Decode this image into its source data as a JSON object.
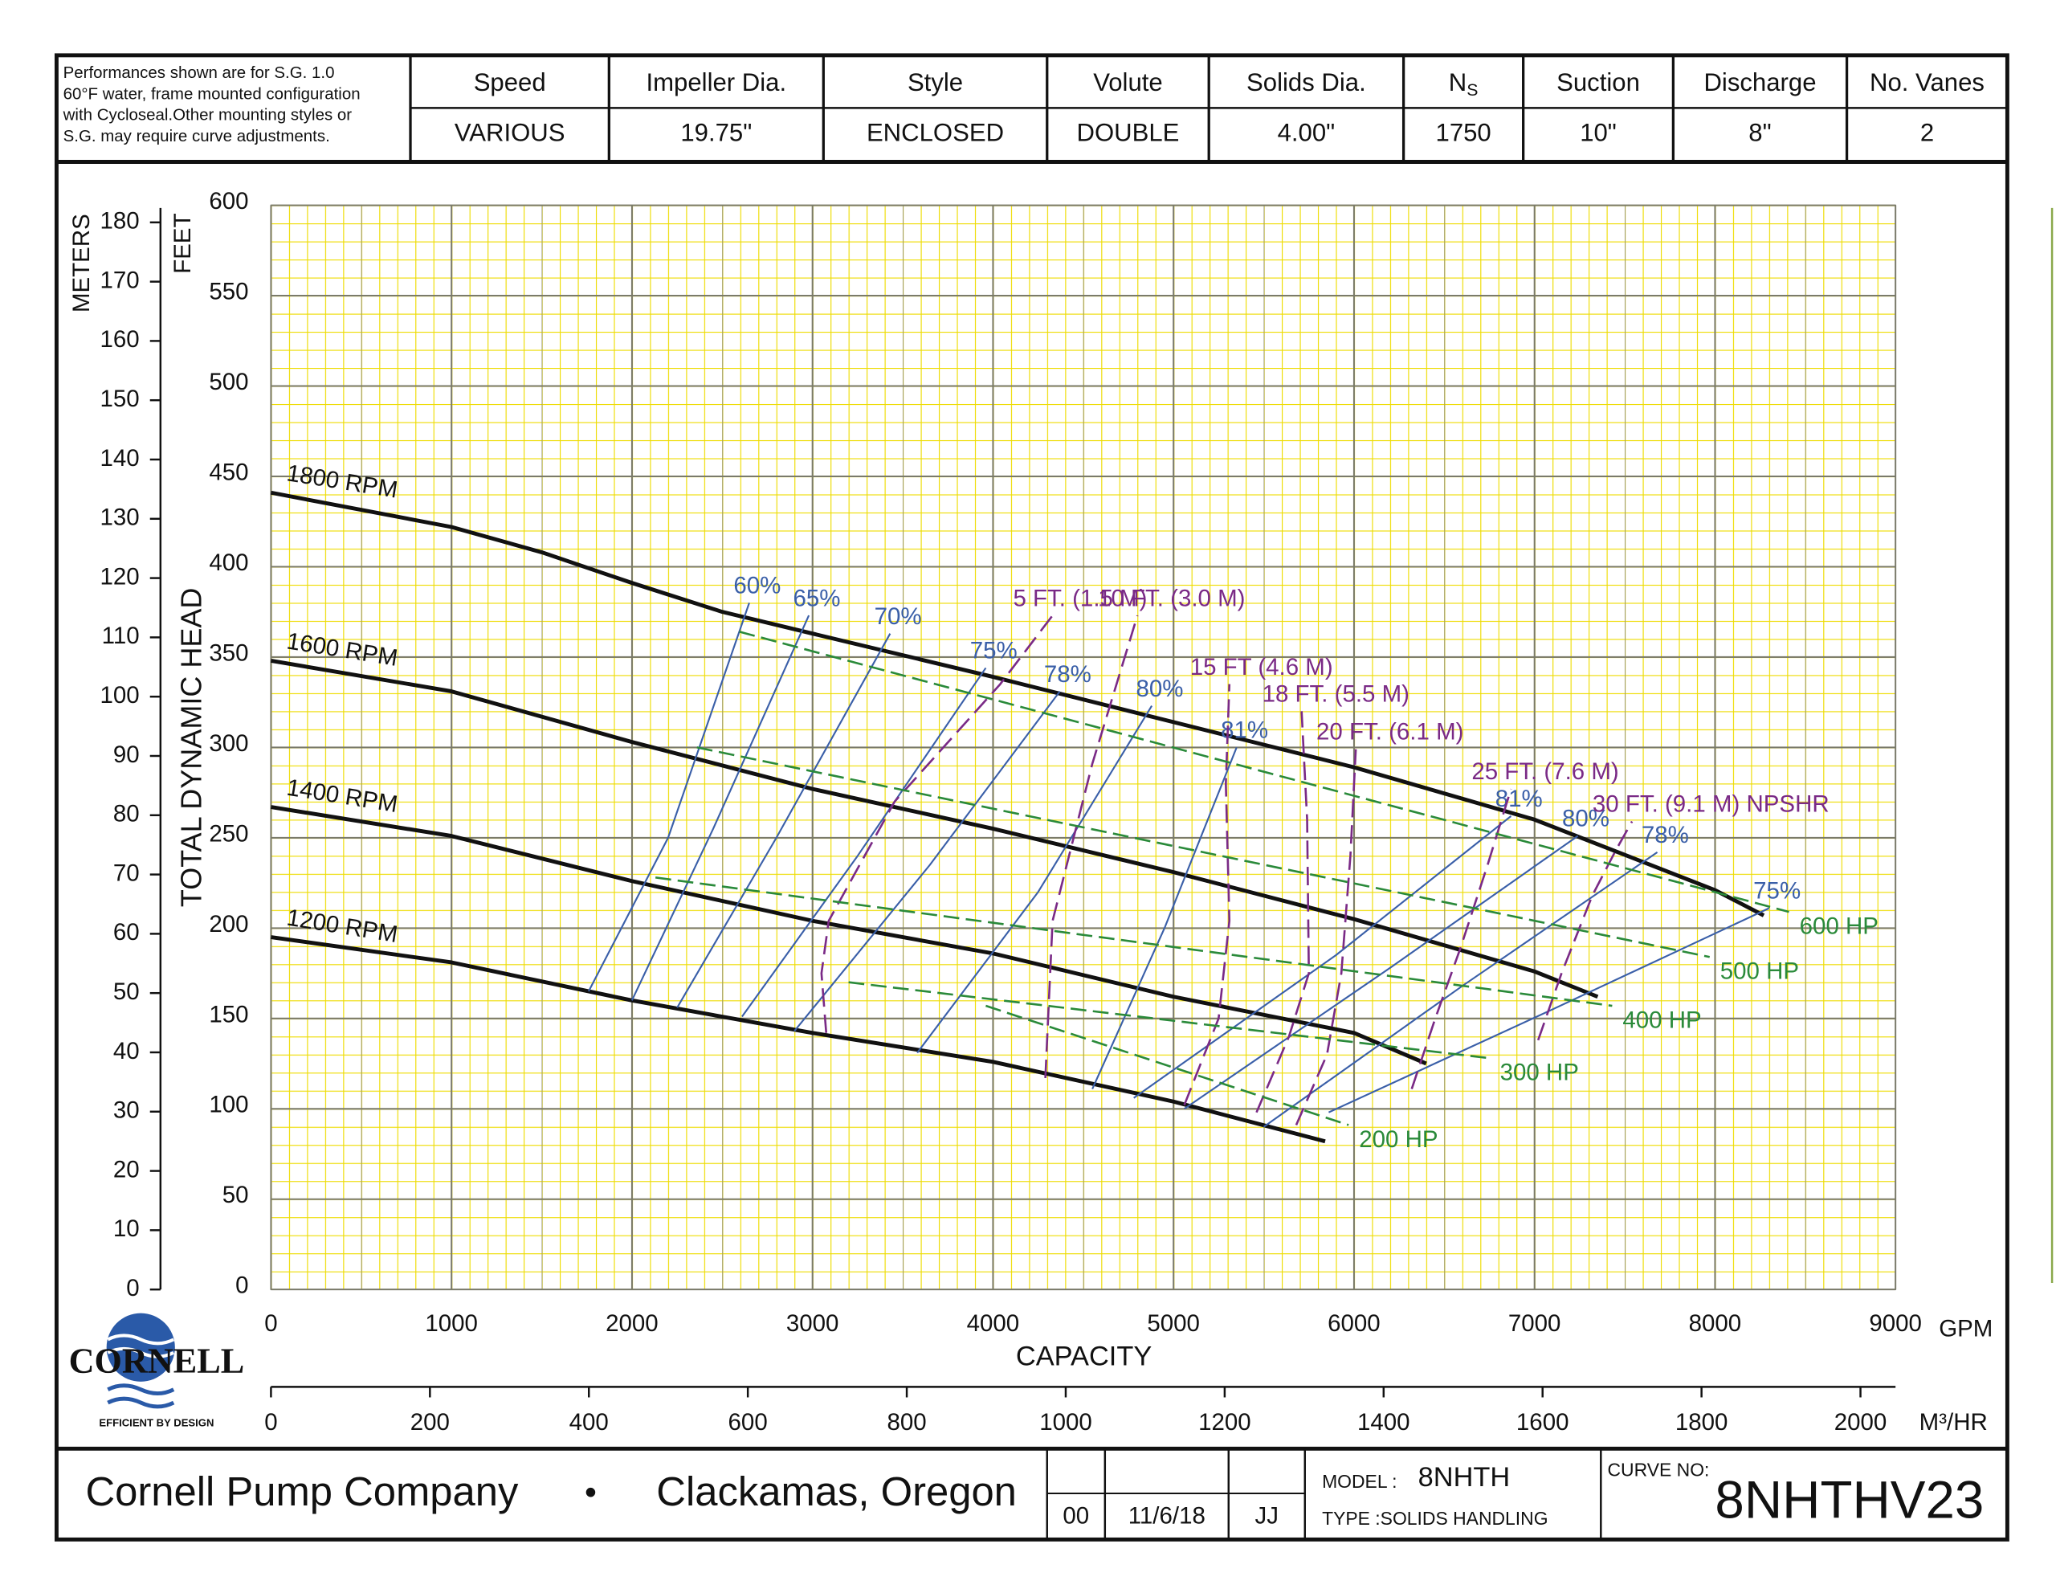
{
  "header": {
    "note": [
      "Performances shown are for S.G. 1.0",
      "60°F water, frame mounted configuration",
      "with Cycloseal.Other mounting styles or",
      "S.G. may require curve adjustments."
    ],
    "columns": [
      {
        "label": "Speed",
        "value": "VARIOUS"
      },
      {
        "label": "Impeller Dia.",
        "value": "19.75\""
      },
      {
        "label": "Style",
        "value": "ENCLOSED"
      },
      {
        "label": "Volute",
        "value": "DOUBLE"
      },
      {
        "label": "Solids Dia.",
        "value": "4.00\""
      },
      {
        "label": "N",
        "subscript": "S",
        "value": "1750"
      },
      {
        "label": "Suction",
        "value": "10\""
      },
      {
        "label": "Discharge",
        "value": "8\""
      },
      {
        "label": "No. Vanes",
        "value": "2"
      }
    ]
  },
  "chart_data": {
    "type": "line",
    "x_label": "CAPACITY",
    "x_unit": "GPM",
    "x2_unit": "M³/HR",
    "y_label": "TOTAL DYNAMIC HEAD",
    "y_unit": "FEET",
    "y2_unit": "METERS",
    "xlim": [
      0,
      9000
    ],
    "xticks": [
      0,
      1000,
      2000,
      3000,
      4000,
      5000,
      6000,
      7000,
      8000,
      9000
    ],
    "x2lim": [
      0,
      2044.1
    ],
    "x2ticks": [
      0,
      200,
      400,
      600,
      800,
      1000,
      1200,
      1400,
      1600,
      1800,
      2000
    ],
    "ylim": [
      0,
      600
    ],
    "yticks": [
      0,
      50,
      100,
      150,
      200,
      250,
      300,
      350,
      400,
      450,
      500,
      550,
      600
    ],
    "y2lim": [
      0,
      182.88
    ],
    "y2ticks": [
      0,
      10,
      20,
      30,
      40,
      50,
      60,
      70,
      80,
      90,
      100,
      110,
      120,
      130,
      140,
      150,
      160,
      170,
      180
    ],
    "grid": true,
    "series": [
      {
        "name": "1800 RPM",
        "color": "#111111",
        "dash": false,
        "x": [
          0,
          1000,
          1500,
          2000,
          2500,
          3000,
          4000,
          5000,
          6000,
          7000,
          8000,
          8270
        ],
        "values": [
          441,
          422,
          408,
          391,
          375,
          363,
          339,
          314,
          289,
          260,
          221,
          207
        ]
      },
      {
        "name": "1600 RPM",
        "color": "#111111",
        "dash": false,
        "x": [
          0,
          1000,
          2000,
          3000,
          4000,
          5000,
          6000,
          7000,
          7350
        ],
        "values": [
          348,
          331,
          303,
          277,
          255,
          231,
          205,
          176,
          162
        ]
      },
      {
        "name": "1400 RPM",
        "color": "#111111",
        "dash": false,
        "x": [
          0,
          1000,
          2000,
          3000,
          4000,
          5000,
          6000,
          6400
        ],
        "values": [
          267,
          251,
          226,
          204,
          186,
          162,
          142,
          125
        ]
      },
      {
        "name": "1200 RPM",
        "color": "#111111",
        "dash": false,
        "x": [
          0,
          1000,
          2000,
          3000,
          4000,
          5000,
          5840
        ],
        "values": [
          195,
          181,
          160,
          142,
          126,
          104,
          82
        ]
      },
      {
        "name": "60%",
        "color": "#3a5fa8",
        "dash": false,
        "x": [
          1760,
          2200,
          2650
        ],
        "values": [
          165,
          250,
          380
        ]
      },
      {
        "name": "65%",
        "color": "#3a5fa8",
        "dash": false,
        "x": [
          2000,
          2450,
          2980
        ],
        "values": [
          160,
          255,
          373
        ]
      },
      {
        "name": "70%",
        "color": "#3a5fa8",
        "dash": false,
        "x": [
          2250,
          2800,
          3430
        ],
        "values": [
          156,
          250,
          363
        ]
      },
      {
        "name": "75%",
        "color": "#3a5fa8",
        "dash": false,
        "x": [
          2610,
          3250,
          3960
        ],
        "values": [
          151,
          240,
          344
        ]
      },
      {
        "name": "78%",
        "color": "#3a5fa8",
        "dash": false,
        "x": [
          2900,
          3650,
          4370
        ],
        "values": [
          143,
          235,
          331
        ]
      },
      {
        "name": "80%",
        "color": "#3a5fa8",
        "dash": false,
        "x": [
          3580,
          4250,
          4880
        ],
        "values": [
          131,
          220,
          323
        ]
      },
      {
        "name": "81%",
        "color": "#3a5fa8",
        "dash": false,
        "x": [
          4550,
          4950,
          5350
        ],
        "values": [
          111,
          200,
          300
        ]
      },
      {
        "name": "81%",
        "color": "#3a5fa8",
        "dash": false,
        "x": [
          4780,
          5900,
          6870
        ],
        "values": [
          106,
          185,
          262
        ]
      },
      {
        "name": "80%",
        "color": "#3a5fa8",
        "dash": false,
        "x": [
          5060,
          6200,
          7240
        ],
        "values": [
          100,
          178,
          251
        ]
      },
      {
        "name": "78%",
        "color": "#3a5fa8",
        "dash": false,
        "x": [
          5500,
          6600,
          7680
        ],
        "values": [
          90,
          168,
          242
        ]
      },
      {
        "name": "75%",
        "color": "#3a5fa8",
        "dash": false,
        "x": [
          5860,
          7100,
          8300
        ],
        "values": [
          98,
          155,
          211
        ]
      },
      {
        "name": "5 FT. (1.5 M)",
        "color": "#7a2a86",
        "dash": true,
        "x": [
          3076,
          3050,
          3090,
          3455,
          4040,
          4330
        ],
        "values": [
          142,
          175,
          204,
          270,
          335,
          373
        ]
      },
      {
        "name": "10 FT. (3.0 M)",
        "color": "#7a2a86",
        "dash": true,
        "x": [
          4290,
          4310,
          4330,
          4550,
          4800
        ],
        "values": [
          117,
          160,
          204,
          291,
          373
        ]
      },
      {
        "name": "15 FT (4.6 M)",
        "color": "#7a2a86",
        "dash": true,
        "x": [
          5060,
          5250,
          5310,
          5290,
          5310
        ],
        "values": [
          102,
          150,
          204,
          280,
          335
        ]
      },
      {
        "name": "18 FT. (5.5 M)",
        "color": "#7a2a86",
        "dash": true,
        "x": [
          5460,
          5640,
          5750,
          5740,
          5710
        ],
        "values": [
          98,
          140,
          175,
          260,
          320
        ]
      },
      {
        "name": "20 FT. (6.1 M)",
        "color": "#7a2a86",
        "dash": true,
        "x": [
          5680,
          5850,
          5930,
          5980,
          6010
        ],
        "values": [
          91,
          130,
          175,
          240,
          299
        ]
      },
      {
        "name": "25 FT. (7.6 M)",
        "color": "#7a2a86",
        "dash": true,
        "x": [
          6320,
          6450,
          6590,
          6740,
          6870
        ],
        "values": [
          111,
          150,
          189,
          235,
          277
        ]
      },
      {
        "name": "30 FT. (9.1 M) NPSHR",
        "color": "#7a2a86",
        "dash": true,
        "x": [
          7020,
          7150,
          7320,
          7450,
          7540
        ],
        "values": [
          138,
          175,
          218,
          243,
          259
        ]
      },
      {
        "name": "600 HP",
        "color": "#2a8a3a",
        "dash": true,
        "x": [
          2595,
          8410
        ],
        "values": [
          364,
          209
        ]
      },
      {
        "name": "500 HP",
        "color": "#2a8a3a",
        "dash": true,
        "x": [
          2360,
          7970
        ],
        "values": [
          300,
          184
        ]
      },
      {
        "name": "400 HP",
        "color": "#2a8a3a",
        "dash": true,
        "x": [
          2130,
          7430
        ],
        "values": [
          228,
          157
        ]
      },
      {
        "name": "300 HP",
        "color": "#2a8a3a",
        "dash": true,
        "x": [
          3200,
          6750
        ],
        "values": [
          170,
          128
        ]
      },
      {
        "name": "200 HP",
        "color": "#2a8a3a",
        "dash": true,
        "x": [
          3960,
          5970
        ],
        "values": [
          157,
          91
        ]
      }
    ]
  },
  "logo": {
    "name": "CORNELL",
    "tagline": "EFFICIENT BY DESIGN"
  },
  "footer": {
    "company": "Cornell Pump Company",
    "separator": "•",
    "location": "Clackamas, Oregon",
    "revision": "00",
    "date": "11/6/18",
    "initials": "JJ",
    "model_label": "MODEL :",
    "model": "8NHTH",
    "type_label": "TYPE :SOLIDS HANDLING",
    "curve_label": "CURVE NO:",
    "curve": "8NHTHV23"
  }
}
